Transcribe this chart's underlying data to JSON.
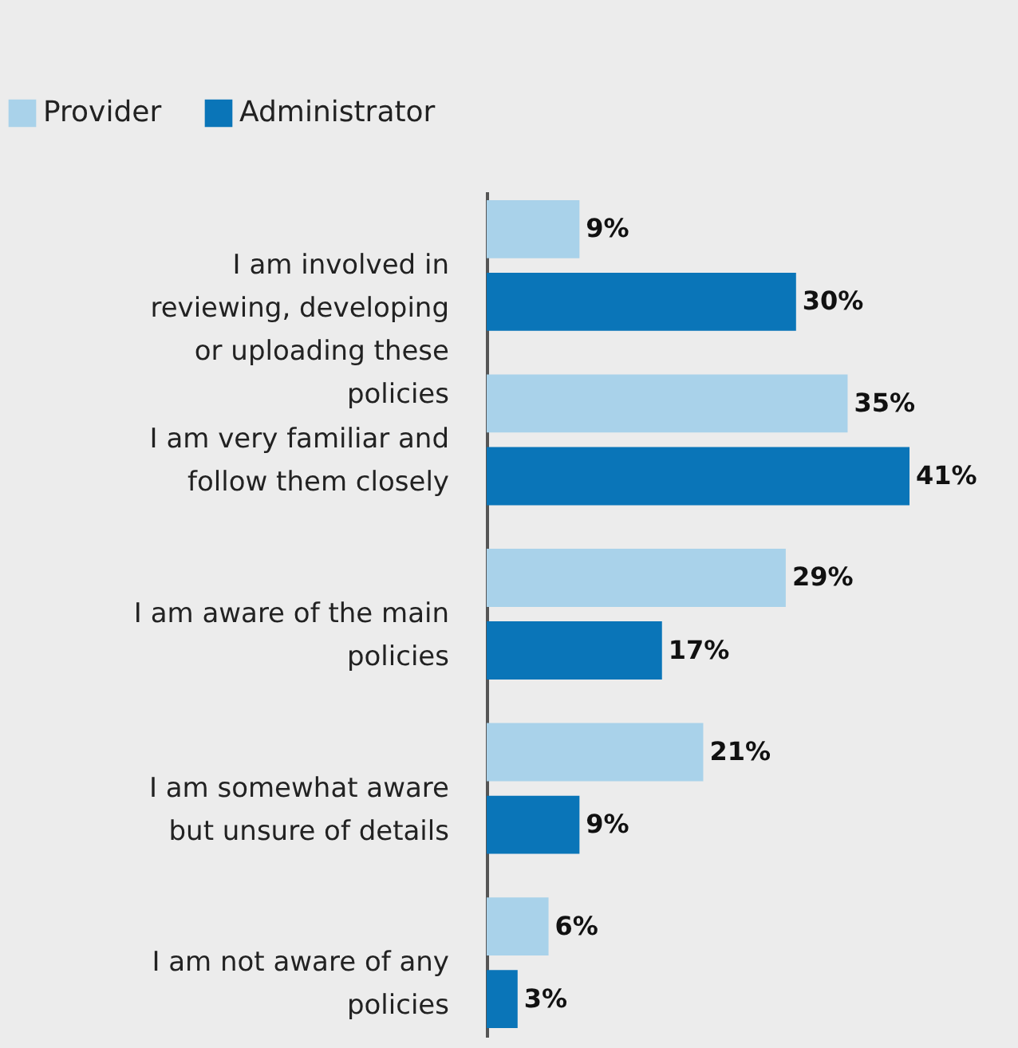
{
  "chart_data": {
    "type": "bar",
    "orientation": "horizontal",
    "categories": [
      "I am involved in reviewing, developing or uploading these policies",
      "I am very familiar and follow them closely",
      "I am aware of the main policies",
      "I am somewhat aware but unsure of details",
      "I am not aware of any policies"
    ],
    "series": [
      {
        "name": "Provider",
        "color": "#a9d2ea",
        "values": [
          9,
          35,
          29,
          21,
          6
        ],
        "value_labels": [
          "9%",
          "35%",
          "29%",
          "21%",
          "6%"
        ]
      },
      {
        "name": "Administrator",
        "color": "#0a75b8",
        "values": [
          30,
          41,
          17,
          9,
          3
        ],
        "value_labels": [
          "30%",
          "41%",
          "17%",
          "9%",
          "3%"
        ]
      }
    ],
    "legend": "top left",
    "grid": false
  }
}
